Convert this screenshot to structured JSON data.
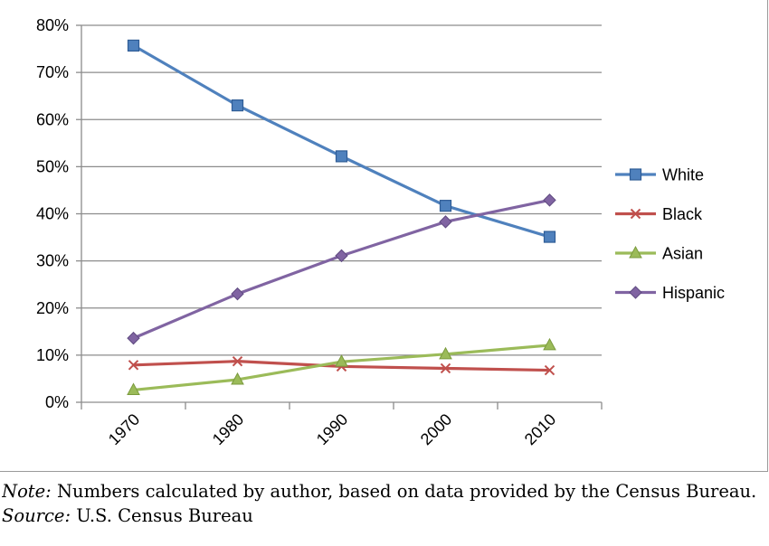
{
  "chart_data": {
    "type": "line",
    "categories": [
      "1970",
      "1980",
      "1990",
      "2000",
      "2010"
    ],
    "y_tick_labels": [
      "0%",
      "10%",
      "20%",
      "30%",
      "40%",
      "50%",
      "60%",
      "70%",
      "80%"
    ],
    "ylim": [
      0,
      80
    ],
    "y_unit": "%",
    "grid": "horizontal",
    "legend_position": "right",
    "series": [
      {
        "name": "White",
        "color": "#4f81bd",
        "marker": "square",
        "values": [
          75.7,
          63.0,
          52.2,
          41.7,
          35.1
        ]
      },
      {
        "name": "Black",
        "color": "#c0504d",
        "marker": "x",
        "values": [
          7.9,
          8.7,
          7.6,
          7.2,
          6.8
        ]
      },
      {
        "name": "Asian",
        "color": "#9bbb59",
        "marker": "triangle",
        "values": [
          2.6,
          4.8,
          8.6,
          10.2,
          12.1
        ]
      },
      {
        "name": "Hispanic",
        "color": "#8064a2",
        "marker": "diamond",
        "values": [
          13.6,
          23.0,
          31.1,
          38.3,
          42.9
        ]
      }
    ]
  },
  "notes": {
    "note_label": "Note:",
    "note_text": " Numbers calculated by author, based on data provided by the Census Bureau.",
    "source_label": "Source:",
    "source_text": " U.S. Census Bureau"
  }
}
